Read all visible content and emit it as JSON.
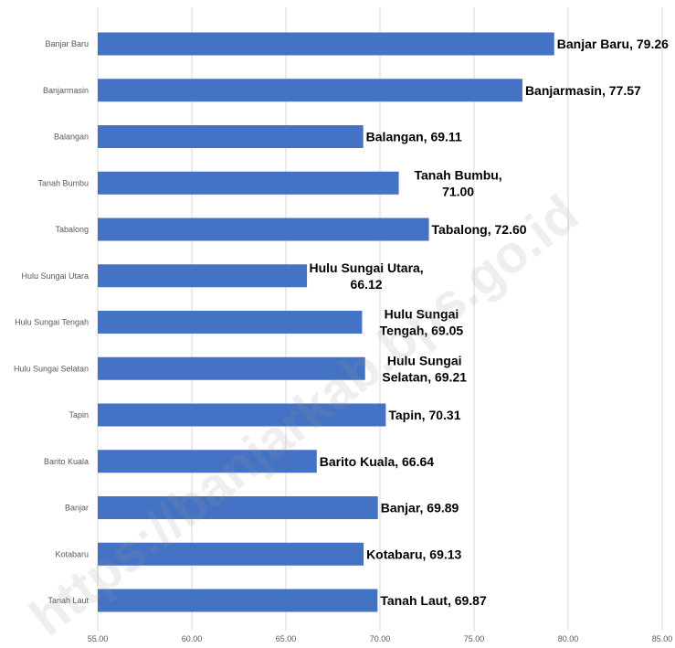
{
  "chart_data": {
    "type": "bar",
    "orientation": "horizontal",
    "categories": [
      "Banjar Baru",
      "Banjarmasin",
      "Balangan",
      "Tanah Bumbu",
      "Tabalong",
      "Hulu Sungai Utara",
      "Hulu Sungai Tengah",
      "Hulu Sungai Selatan",
      "Tapin",
      "Barito Kuala",
      "Banjar",
      "Kotabaru",
      "Tanah Laut"
    ],
    "values": [
      79.26,
      77.57,
      69.11,
      71.0,
      72.6,
      66.12,
      69.05,
      69.21,
      70.31,
      66.64,
      69.89,
      69.13,
      69.87
    ],
    "data_labels": [
      [
        "Banjar Baru, 79.26"
      ],
      [
        "Banjarmasin, 77.57"
      ],
      [
        "Balangan, 69.11"
      ],
      [
        "Tanah Bumbu,",
        "71.00"
      ],
      [
        "Tabalong, 72.60"
      ],
      [
        "Hulu Sungai Utara,",
        "66.12"
      ],
      [
        "Hulu Sungai",
        "Tengah, 69.05"
      ],
      [
        "Hulu Sungai",
        "Selatan, 69.21"
      ],
      [
        "Tapin, 70.31"
      ],
      [
        "Barito Kuala, 66.64"
      ],
      [
        "Banjar, 69.89"
      ],
      [
        "Kotabaru, 69.13"
      ],
      [
        "Tanah Laut, 69.87"
      ]
    ],
    "xlim": [
      55,
      85
    ],
    "xticks": [
      "55.00",
      "60.00",
      "65.00",
      "70.00",
      "75.00",
      "80.00",
      "85.00"
    ],
    "xtick_values": [
      55,
      60,
      65,
      70,
      75,
      80,
      85
    ],
    "grid": true,
    "legend": "none",
    "title": "",
    "xlabel": "",
    "ylabel": "",
    "bar_color": "#4472c4",
    "gridline_color": "#d9d9d9"
  },
  "watermark": "https://banjarkab.bps.go.id"
}
